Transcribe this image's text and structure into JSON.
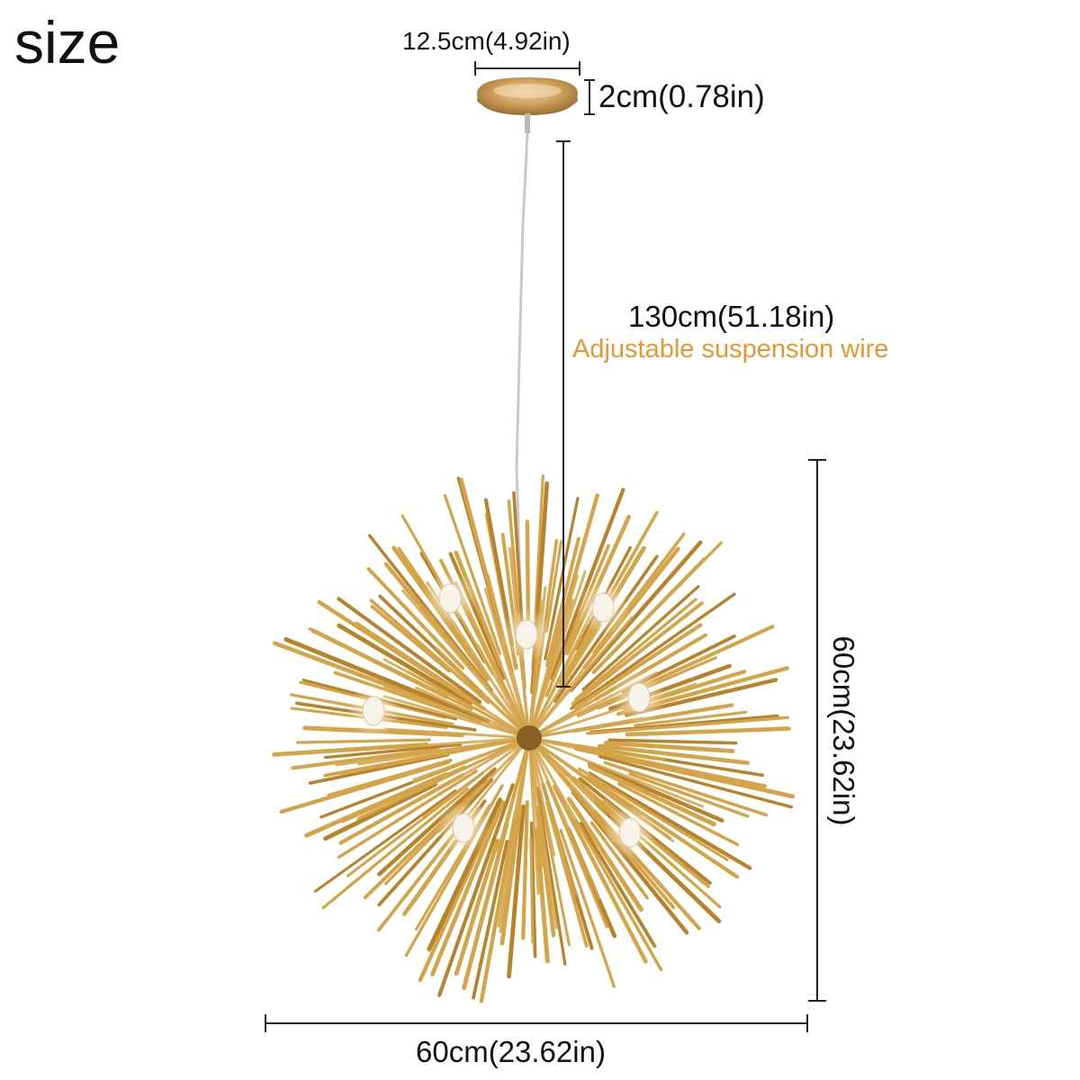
{
  "title": "size",
  "dimensions": {
    "canopy_diameter": "12.5cm(4.92in)",
    "canopy_height": "2cm(0.78in)",
    "wire_length": "130cm(51.18in)",
    "wire_note": "Adjustable suspension wire",
    "sphere_height": "60cm(23.62in)",
    "sphere_width": "60cm(23.62in)"
  },
  "colors": {
    "rod": "#d4a449",
    "rod_dark": "#b9832c",
    "canopy": "#c99a57",
    "accent_text": "#e8962e",
    "line": "#222222",
    "wire": "#c9c9c9"
  }
}
